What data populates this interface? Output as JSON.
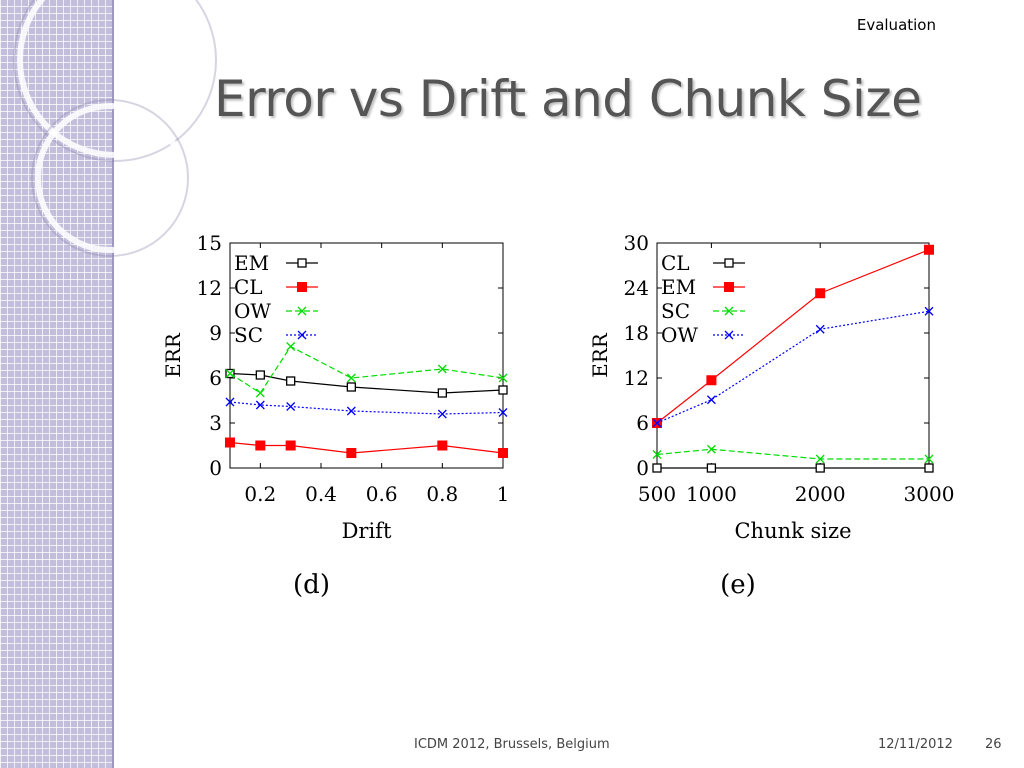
{
  "slide": {
    "section": "Evaluation",
    "title": "Error vs Drift and Chunk Size",
    "footer_left": "ICDM 2012, Brussels, Belgium",
    "footer_date": "12/11/2012",
    "page_number": "26"
  },
  "chart_data": [
    {
      "type": "line",
      "caption": "(d)",
      "xlabel": "Drift",
      "ylabel": "ERR",
      "xlim": [
        0.1,
        1
      ],
      "ylim": [
        0,
        15
      ],
      "xticks": [
        0.2,
        0.4,
        0.6,
        0.8,
        1
      ],
      "xtick_labels": [
        "0.2",
        "0.4",
        "0.6",
        "0.8",
        "1"
      ],
      "yticks": [
        0,
        3,
        6,
        9,
        12,
        15
      ],
      "legend_position": "top-left",
      "series": [
        {
          "name": "EM",
          "color": "#000000",
          "marker": "open-square",
          "dash": "solid",
          "x": [
            0.1,
            0.2,
            0.3,
            0.5,
            0.8,
            1.0
          ],
          "y": [
            6.3,
            6.2,
            5.8,
            5.4,
            5.0,
            5.2
          ]
        },
        {
          "name": "CL",
          "color": "#ff0000",
          "marker": "filled-square",
          "dash": "solid",
          "x": [
            0.1,
            0.2,
            0.3,
            0.5,
            0.8,
            1.0
          ],
          "y": [
            1.7,
            1.5,
            1.5,
            1.0,
            1.5,
            1.0
          ]
        },
        {
          "name": "OW",
          "color": "#00dd00",
          "marker": "x",
          "dash": "dashed",
          "x": [
            0.1,
            0.2,
            0.3,
            0.5,
            0.8,
            1.0
          ],
          "y": [
            6.3,
            5.0,
            8.1,
            6.0,
            6.6,
            6.0
          ]
        },
        {
          "name": "SC",
          "color": "#0000ff",
          "marker": "x",
          "dash": "dotted",
          "x": [
            0.1,
            0.2,
            0.3,
            0.5,
            0.8,
            1.0
          ],
          "y": [
            4.4,
            4.2,
            4.1,
            3.8,
            3.6,
            3.7
          ]
        }
      ]
    },
    {
      "type": "line",
      "caption": "(e)",
      "xlabel": "Chunk size",
      "ylabel": "ERR",
      "xlim": [
        500,
        3000
      ],
      "ylim": [
        0,
        30
      ],
      "xticks": [
        500,
        1000,
        2000,
        3000
      ],
      "xtick_labels": [
        "500",
        "1000",
        "2000",
        "3000"
      ],
      "yticks": [
        0,
        6,
        12,
        18,
        24,
        30
      ],
      "legend_position": "top-left",
      "series": [
        {
          "name": "CL",
          "color": "#000000",
          "marker": "open-square",
          "dash": "solid",
          "x": [
            500,
            1000,
            2000,
            3000
          ],
          "y": [
            0,
            0,
            0,
            0
          ]
        },
        {
          "name": "EM",
          "color": "#ff0000",
          "marker": "filled-square",
          "dash": "solid",
          "x": [
            500,
            1000,
            2000,
            3000
          ],
          "y": [
            6.0,
            11.7,
            23.3,
            29.1
          ]
        },
        {
          "name": "SC",
          "color": "#00dd00",
          "marker": "x",
          "dash": "dashed",
          "x": [
            500,
            1000,
            2000,
            3000
          ],
          "y": [
            1.8,
            2.5,
            1.2,
            1.2
          ]
        },
        {
          "name": "OW",
          "color": "#0000ff",
          "marker": "x",
          "dash": "dotted",
          "x": [
            500,
            1000,
            2000,
            3000
          ],
          "y": [
            6.0,
            9.1,
            18.5,
            20.9
          ]
        }
      ]
    }
  ]
}
